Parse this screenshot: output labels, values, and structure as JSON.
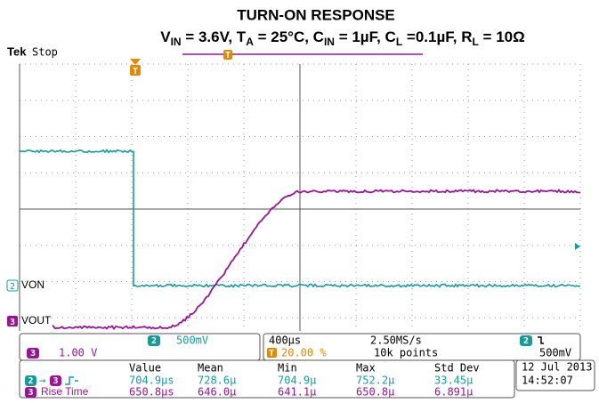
{
  "header": {
    "title": "TURN-ON RESPONSE",
    "subtitle": [
      "V",
      "IN",
      " = 3.6V, T",
      "A",
      " = 25°C, C",
      "IN",
      " = 1µF, C",
      "L",
      " =0.1µF, R",
      "L",
      " = 10Ω"
    ]
  },
  "status": {
    "brand": "Tek",
    "state": "Stop"
  },
  "markers": {
    "trigger": "T",
    "ch2": {
      "number": "2",
      "label": "VON"
    },
    "ch3": {
      "number": "3",
      "label": "VOUT"
    }
  },
  "channels": [
    {
      "number": "2",
      "scale": "500mV"
    },
    {
      "number": "3",
      "scale": "1.00 V"
    }
  ],
  "timebase": {
    "scale": "400µs",
    "sample_rate": "2.50MS/s",
    "trigger_position": "20.00 %",
    "record_length": "10k points",
    "trigger_channel": "2",
    "trigger_level": "500mV"
  },
  "measurements": {
    "headers": [
      "Value",
      "Mean",
      "Min",
      "Max",
      "Std Dev"
    ],
    "rows": [
      {
        "source": "2",
        "target": "3",
        "values": [
          "704.9µs",
          "728.6µ",
          "704.9µ",
          "752.2µ",
          "33.45µ"
        ]
      },
      {
        "source": "3",
        "label": "Rise Time",
        "values": [
          "650.8µs",
          "646.0µ",
          "641.1µ",
          "650.8µ",
          "6.891µ"
        ]
      }
    ]
  },
  "datetime": {
    "date": "12 Jul 2013",
    "time": "14:52:07"
  }
}
